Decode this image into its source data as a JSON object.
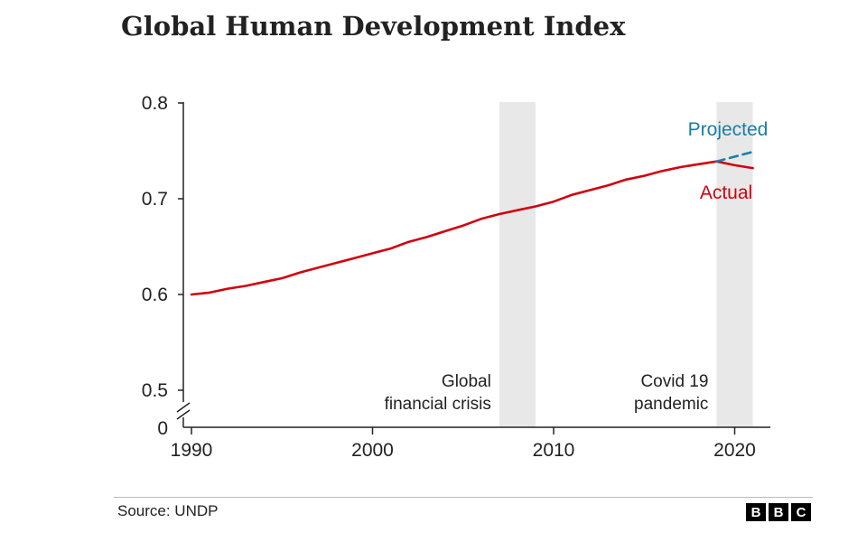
{
  "title": "Global Human Development Index",
  "source": "Source: UNDP",
  "logo": [
    "B",
    "B",
    "C"
  ],
  "colors": {
    "actual": "#d0020f",
    "projected": "#1a7ea5",
    "band": "#e8e8e8",
    "axis": "#222222"
  },
  "chart_data": {
    "type": "line",
    "title": "Global Human Development Index",
    "xlabel": "",
    "ylabel": "",
    "xlim": [
      1989,
      2021
    ],
    "ylim": [
      0.5,
      0.8
    ],
    "broken_axis_zero_label": "0",
    "y_ticks": [
      "0.5",
      "0.6",
      "0.7",
      "0.8"
    ],
    "x_ticks": [
      "1990",
      "2000",
      "2010",
      "2020"
    ],
    "grid": false,
    "shaded_periods": [
      {
        "start": 2007,
        "end": 2009,
        "label": [
          "Global",
          "financial crisis"
        ]
      },
      {
        "start": 2019,
        "end": 2021,
        "label": [
          "Covid 19",
          "pandemic"
        ]
      }
    ],
    "series": [
      {
        "name": "Actual",
        "style": "solid",
        "x": [
          1990,
          1991,
          1992,
          1993,
          1994,
          1995,
          1996,
          1997,
          1998,
          1999,
          2000,
          2001,
          2002,
          2003,
          2004,
          2005,
          2006,
          2007,
          2008,
          2009,
          2010,
          2011,
          2012,
          2013,
          2014,
          2015,
          2016,
          2017,
          2018,
          2019,
          2020,
          2021
        ],
        "values": [
          0.6,
          0.602,
          0.606,
          0.609,
          0.613,
          0.617,
          0.623,
          0.628,
          0.633,
          0.638,
          0.643,
          0.648,
          0.655,
          0.66,
          0.666,
          0.672,
          0.679,
          0.684,
          0.688,
          0.692,
          0.697,
          0.704,
          0.709,
          0.714,
          0.72,
          0.724,
          0.729,
          0.733,
          0.736,
          0.739,
          0.735,
          0.732
        ]
      },
      {
        "name": "Projected",
        "style": "dashed",
        "x": [
          2019,
          2020,
          2021
        ],
        "values": [
          0.739,
          0.744,
          0.749
        ]
      }
    ]
  }
}
